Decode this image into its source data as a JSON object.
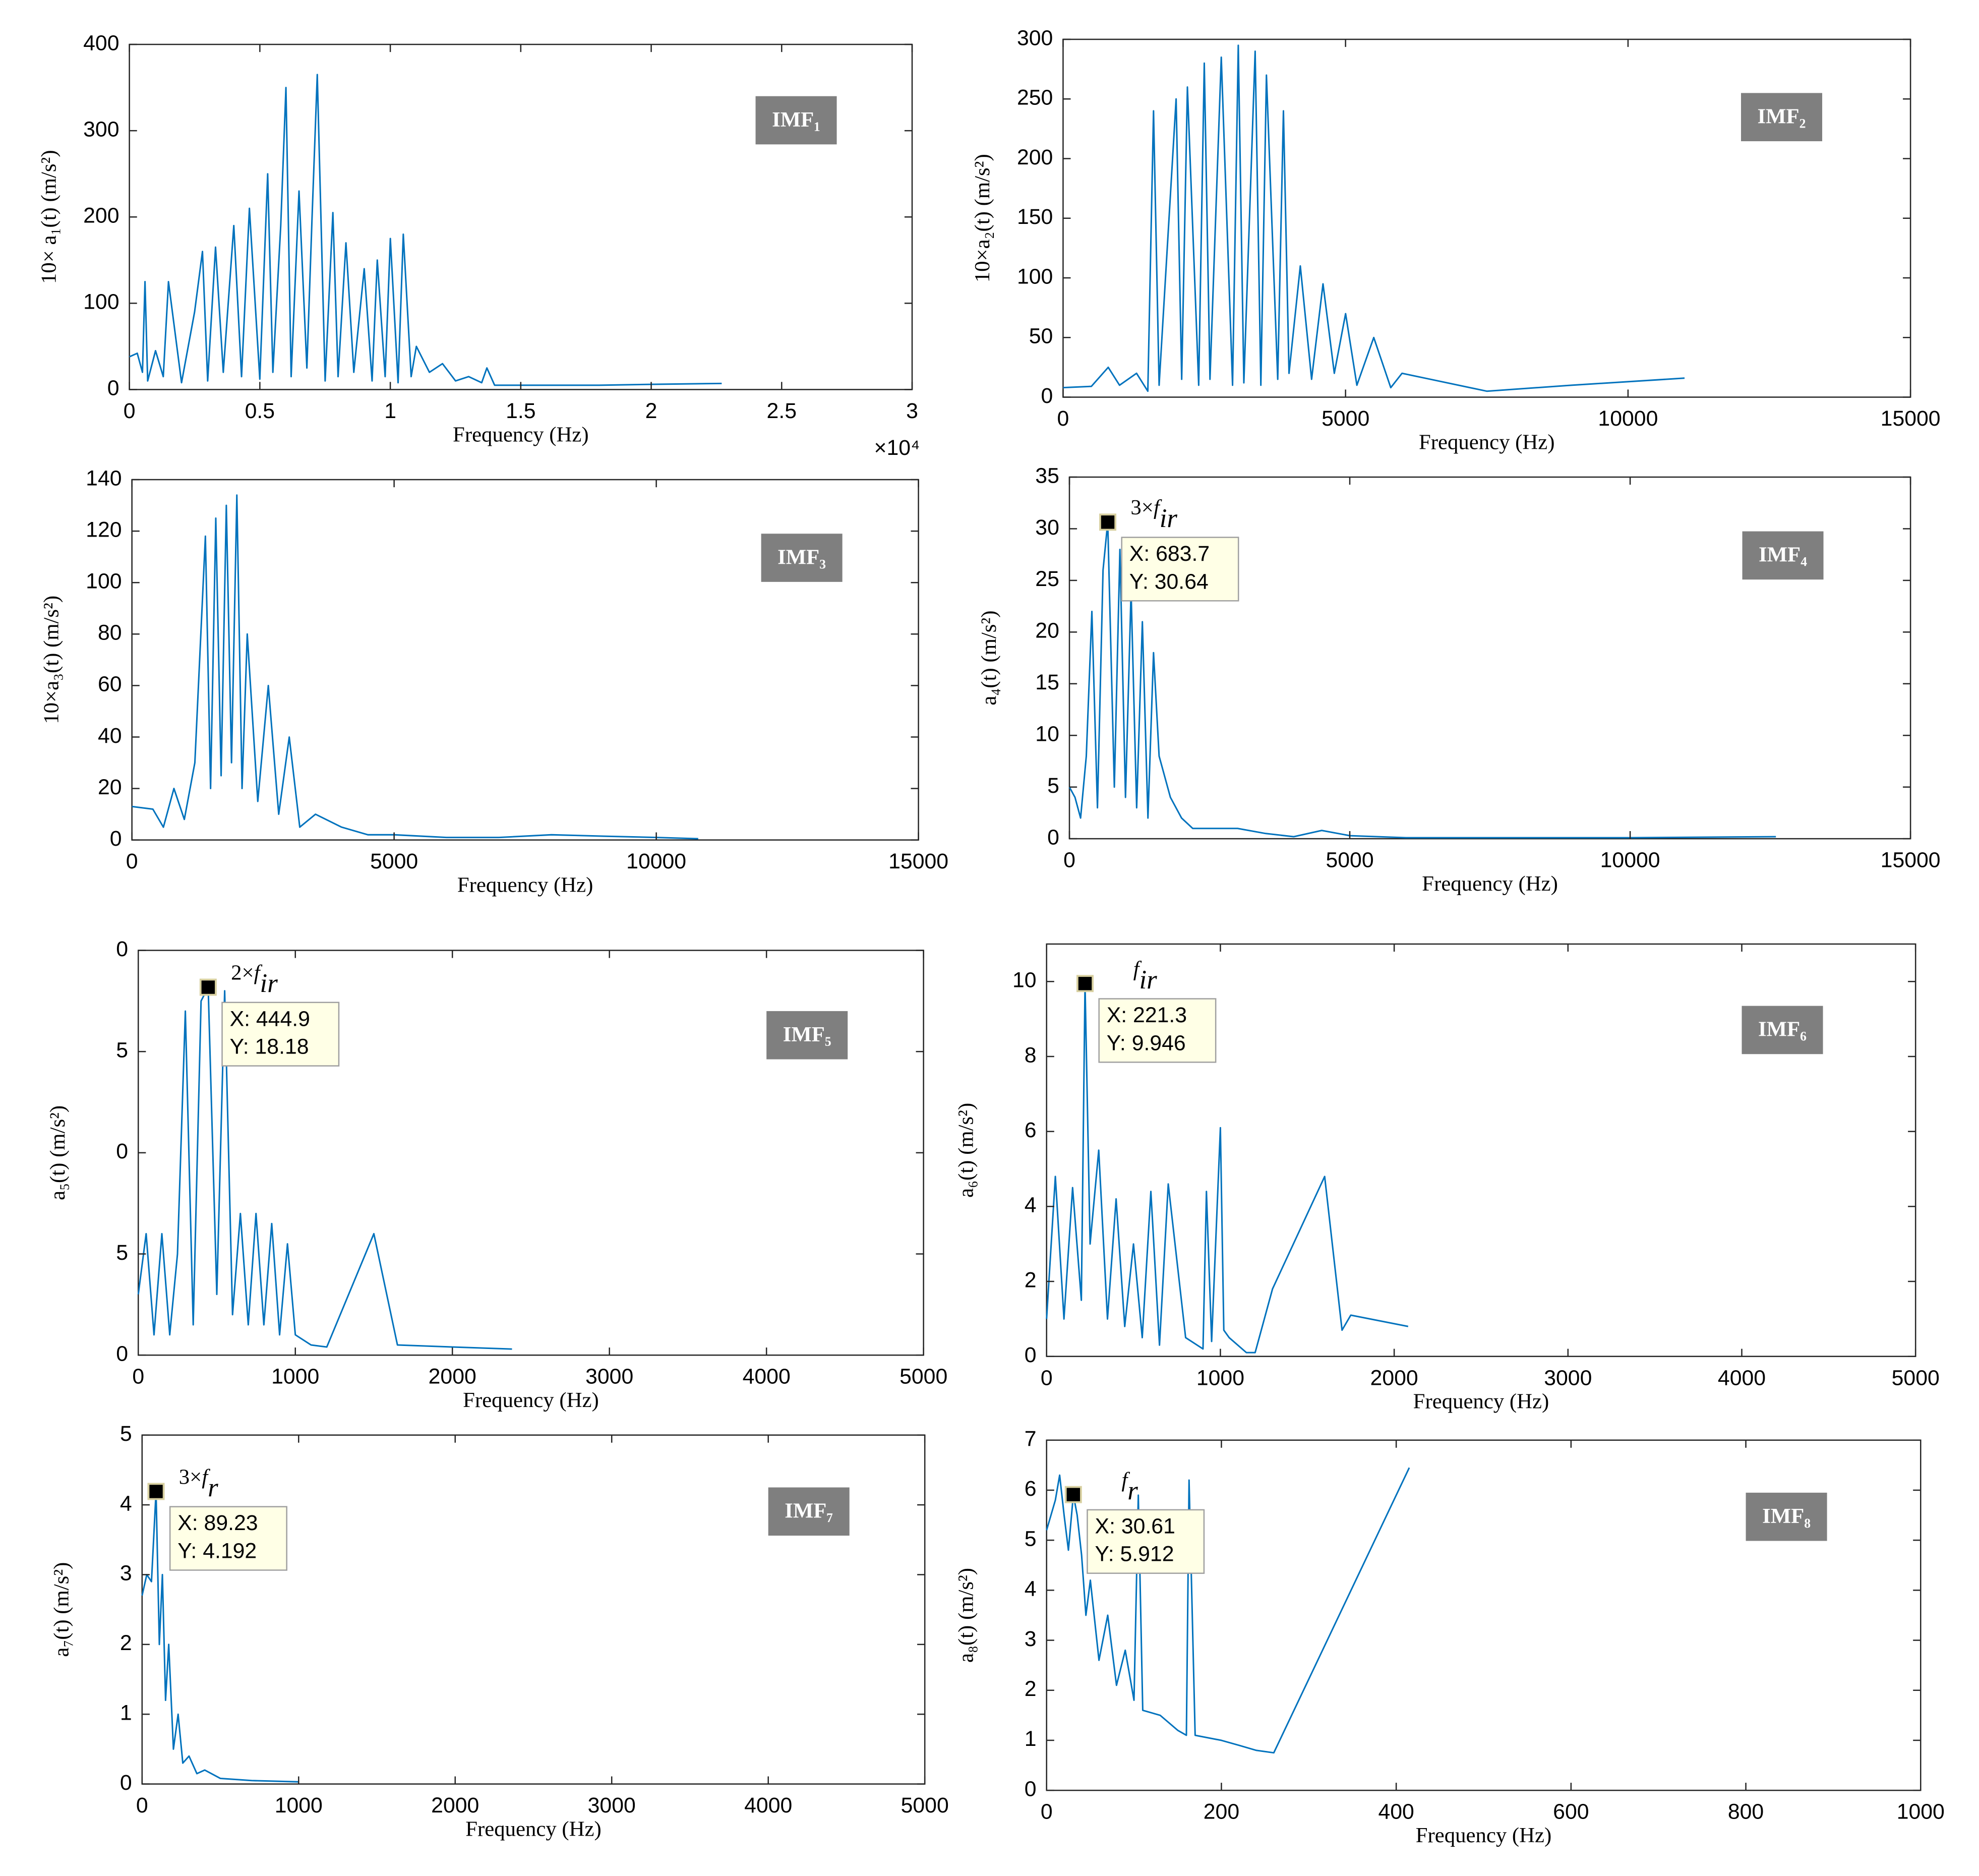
{
  "chart_data": [
    {
      "type": "line",
      "badge": "IMF₁",
      "ylabel": "10× a₁(t) (m/s²)",
      "xlabel": "Frequency (Hz)",
      "x_exponent": "×10⁴",
      "color": "#0072bd",
      "xlim": [
        0,
        30000
      ],
      "xticks": [
        0,
        {
          "value": 5000,
          "label": "0.5"
        },
        {
          "value": 10000,
          "label": "1"
        },
        {
          "value": 15000,
          "label": "1.5"
        },
        {
          "value": 20000,
          "label": "2"
        },
        {
          "value": 25000,
          "label": "2.5"
        },
        {
          "value": 30000,
          "label": "3"
        }
      ],
      "ylim": [
        0,
        400
      ],
      "yticks": [
        0,
        100,
        200,
        300,
        400
      ],
      "x": [
        0,
        300,
        500,
        600,
        700,
        1000,
        1300,
        1500,
        2000,
        2500,
        2800,
        3000,
        3300,
        3600,
        4000,
        4300,
        4600,
        5000,
        5300,
        5500,
        5800,
        6000,
        6200,
        6500,
        6800,
        7000,
        7200,
        7500,
        7800,
        8000,
        8300,
        8600,
        9000,
        9300,
        9500,
        9800,
        10000,
        10300,
        10500,
        10800,
        11000,
        11500,
        12000,
        12500,
        13000,
        13500,
        13700,
        14000,
        15000,
        18000,
        20000,
        22700
      ],
      "values": [
        38,
        42,
        20,
        125,
        10,
        45,
        15,
        125,
        8,
        90,
        160,
        10,
        165,
        20,
        190,
        15,
        210,
        12,
        250,
        20,
        190,
        350,
        15,
        230,
        25,
        200,
        365,
        10,
        205,
        15,
        170,
        20,
        140,
        10,
        150,
        15,
        175,
        8,
        180,
        15,
        50,
        20,
        30,
        10,
        15,
        8,
        25,
        5,
        5,
        5,
        6,
        7
      ]
    },
    {
      "type": "line",
      "badge": "IMF₂",
      "ylabel": "10×a₂(t) (m/s²)",
      "xlabel": "Frequency (Hz)",
      "color": "#0072bd",
      "xlim": [
        0,
        15000
      ],
      "xticks": [
        0,
        5000,
        10000,
        15000
      ],
      "ylim": [
        0,
        300
      ],
      "yticks": [
        0,
        50,
        100,
        150,
        200,
        250,
        300
      ],
      "x": [
        0,
        500,
        800,
        1000,
        1300,
        1500,
        1600,
        1700,
        2000,
        2100,
        2200,
        2400,
        2500,
        2600,
        2800,
        3000,
        3100,
        3200,
        3400,
        3500,
        3600,
        3800,
        3900,
        4000,
        4200,
        4400,
        4600,
        4800,
        5000,
        5200,
        5500,
        5800,
        6000,
        6500,
        7500,
        9000,
        11000
      ],
      "values": [
        8,
        9,
        25,
        10,
        20,
        5,
        240,
        10,
        250,
        15,
        260,
        10,
        280,
        15,
        285,
        10,
        295,
        12,
        290,
        10,
        270,
        15,
        240,
        20,
        110,
        15,
        95,
        20,
        70,
        10,
        50,
        8,
        20,
        15,
        5,
        10,
        16
      ]
    },
    {
      "type": "line",
      "badge": "IMF₃",
      "ylabel": "10×a₃(t) (m/s²)",
      "xlabel": "Frequency (Hz)",
      "color": "#0072bd",
      "xlim": [
        0,
        15000
      ],
      "xticks": [
        0,
        5000,
        10000,
        15000
      ],
      "ylim": [
        0,
        140
      ],
      "yticks": [
        0,
        20,
        40,
        60,
        80,
        100,
        120,
        140
      ],
      "x": [
        0,
        400,
        600,
        800,
        1000,
        1200,
        1400,
        1500,
        1600,
        1700,
        1800,
        1900,
        2000,
        2100,
        2200,
        2400,
        2600,
        2800,
        3000,
        3200,
        3500,
        4000,
        4500,
        5000,
        6000,
        7000,
        8000,
        9000,
        10000,
        10800
      ],
      "values": [
        13,
        12,
        5,
        20,
        8,
        30,
        118,
        20,
        125,
        25,
        130,
        30,
        134,
        20,
        80,
        15,
        60,
        10,
        40,
        5,
        10,
        5,
        2,
        2,
        1,
        1,
        2,
        1.5,
        1,
        0.5
      ]
    },
    {
      "type": "line",
      "badge": "IMF₄",
      "ylabel": "a₄(t) (m/s²)",
      "xlabel": "Frequency (Hz)",
      "color": "#0072bd",
      "xlim": [
        0,
        15000
      ],
      "xticks": [
        0,
        5000,
        10000,
        15000
      ],
      "ylim": [
        0,
        35
      ],
      "yticks": [
        0,
        5,
        10,
        15,
        20,
        25,
        30,
        35
      ],
      "x": [
        0,
        100,
        200,
        300,
        400,
        500,
        600,
        683.7,
        800,
        900,
        1000,
        1100,
        1200,
        1300,
        1400,
        1500,
        1600,
        1800,
        2000,
        2200,
        2500,
        3000,
        3500,
        4000,
        4500,
        5000,
        6000,
        8000,
        10000,
        12600
      ],
      "values": [
        5,
        4,
        2,
        8,
        22,
        3,
        26,
        30.64,
        5,
        28,
        4,
        24,
        3,
        21,
        2,
        18,
        8,
        4,
        2,
        1,
        1,
        1,
        0.5,
        0.2,
        0.8,
        0.3,
        0.1,
        0.1,
        0.1,
        0.2
      ],
      "datatip": {
        "x": 683.7,
        "y": 30.64,
        "x_label": "X: 683.7",
        "y_label": "Y: 30.64"
      },
      "annotation": {
        "prefix": "3×",
        "symbol": "f",
        "subscript": "ir"
      }
    },
    {
      "type": "line",
      "badge": "IMF₅",
      "ylabel": "a₅(t) (m/s²)",
      "xlabel": "Frequency (Hz)",
      "color": "#0072bd",
      "xlim": [
        0,
        5000
      ],
      "xticks": [
        0,
        1000,
        2000,
        3000,
        4000,
        5000
      ],
      "ylim": [
        0,
        20
      ],
      "yticks": [
        0,
        5,
        {
          "value": 10,
          "label": "0"
        },
        {
          "value": 15,
          "label": "5"
        },
        {
          "value": 20,
          "label": "0"
        }
      ],
      "x": [
        0,
        50,
        100,
        150,
        200,
        250,
        300,
        350,
        400,
        444.9,
        500,
        550,
        600,
        650,
        700,
        750,
        800,
        850,
        900,
        950,
        1000,
        1100,
        1200,
        1500,
        1650,
        2000,
        2380
      ],
      "values": [
        3,
        6,
        1,
        6,
        1,
        5,
        17,
        1.5,
        17.5,
        18.18,
        3,
        18,
        2,
        7,
        1.5,
        7,
        1.5,
        6.5,
        1,
        5.5,
        1,
        0.5,
        0.4,
        6,
        0.5,
        0.4,
        0.3
      ],
      "datatip": {
        "x": 444.9,
        "y": 18.18,
        "x_label": "X: 444.9",
        "y_label": "Y: 18.18"
      },
      "annotation": {
        "prefix": "2×",
        "symbol": "f",
        "subscript": "ir"
      }
    },
    {
      "type": "line",
      "badge": "IMF₆",
      "ylabel": "a₆(t) (m/s²)",
      "xlabel": "Frequency (Hz)",
      "color": "#0072bd",
      "xlim": [
        0,
        5000
      ],
      "xticks": [
        0,
        1000,
        2000,
        3000,
        4000,
        5000
      ],
      "ylim": [
        0,
        11
      ],
      "yticks": [
        0,
        2,
        4,
        6,
        8,
        10
      ],
      "x": [
        0,
        50,
        100,
        150,
        200,
        221.3,
        250,
        300,
        350,
        400,
        450,
        500,
        550,
        600,
        650,
        700,
        800,
        900,
        920,
        950,
        1000,
        1020,
        1050,
        1150,
        1200,
        1300,
        1600,
        1700,
        1750,
        2080
      ],
      "values": [
        1,
        4.8,
        1,
        4.5,
        1.5,
        9.946,
        3,
        5.5,
        1,
        4.2,
        0.8,
        3,
        0.5,
        4.4,
        0.3,
        4.6,
        0.5,
        0.2,
        4.4,
        0.4,
        6.1,
        0.7,
        0.5,
        0.1,
        0.1,
        1.8,
        4.8,
        0.7,
        1.1,
        0.8
      ],
      "datatip": {
        "x": 221.3,
        "y": 9.946,
        "x_label": "X: 221.3",
        "y_label": "Y: 9.946"
      },
      "annotation": {
        "symbol": "f",
        "subscript": "ir"
      }
    },
    {
      "type": "line",
      "badge": "IMF₇",
      "ylabel": "a₇(t) (m/s²)",
      "xlabel": "Frequency (Hz)",
      "color": "#0072bd",
      "xlim": [
        0,
        5000
      ],
      "xticks": [
        0,
        1000,
        2000,
        3000,
        4000,
        5000
      ],
      "ylim": [
        0,
        5
      ],
      "yticks": [
        0,
        1,
        2,
        3,
        4,
        5
      ],
      "x": [
        0,
        30,
        60,
        89.23,
        110,
        130,
        150,
        170,
        200,
        230,
        260,
        300,
        350,
        400,
        500,
        700,
        1000
      ],
      "values": [
        2.7,
        3,
        2.9,
        4.192,
        2,
        3,
        1.2,
        2,
        0.5,
        1,
        0.3,
        0.4,
        0.15,
        0.2,
        0.08,
        0.05,
        0.03
      ],
      "datatip": {
        "x": 89.23,
        "y": 4.192,
        "x_label": "X: 89.23",
        "y_label": "Y: 4.192"
      },
      "annotation": {
        "prefix": "3×",
        "symbol": "f",
        "subscript": "r"
      }
    },
    {
      "type": "line",
      "badge": "IMF₈",
      "ylabel": "a₈(t) (m/s²)",
      "xlabel": "Frequency  (Hz)",
      "color": "#0072bd",
      "xlim": [
        0,
        1000
      ],
      "xticks": [
        0,
        200,
        400,
        600,
        800,
        1000
      ],
      "ylim": [
        0,
        7
      ],
      "yticks": [
        0,
        1,
        2,
        3,
        4,
        5,
        6,
        7
      ],
      "x": [
        0,
        10,
        15,
        20,
        25,
        30.61,
        35,
        40,
        45,
        50,
        60,
        70,
        80,
        90,
        100,
        105,
        110,
        130,
        150,
        160,
        163,
        170,
        200,
        220,
        240,
        260,
        415
      ],
      "values": [
        5.2,
        5.8,
        6.3,
        5.5,
        4.8,
        5.912,
        5.5,
        4.7,
        3.5,
        4.2,
        2.6,
        3.5,
        2.1,
        2.8,
        1.8,
        5.9,
        1.6,
        1.5,
        1.2,
        1.1,
        6.2,
        1.1,
        1,
        0.9,
        0.8,
        0.75,
        6.45
      ],
      "datatip": {
        "x": 30.61,
        "y": 5.912,
        "x_label": "X: 30.61",
        "y_label": "Y: 5.912"
      },
      "annotation": {
        "symbol": "f",
        "subscript": "r"
      }
    }
  ]
}
